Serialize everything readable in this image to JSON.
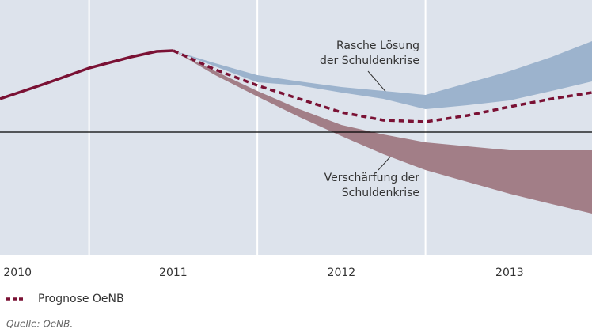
{
  "chart_data": {
    "type": "line",
    "xlim": [
      2009.97,
      2013.49
    ],
    "xticks": [
      2010,
      2011,
      2012,
      2013
    ],
    "xgrid": [
      2010.5,
      2011.5,
      2012.5
    ],
    "ylim": [
      -15.6,
      16.7
    ],
    "baseline": 0,
    "background": "#dde3ec",
    "series": [
      {
        "color": "#7a1134",
        "dashed": false,
        "x": [
          2009.97,
          2010.25,
          2010.5,
          2010.75,
          2010.9,
          2011
        ],
        "values": [
          4.2,
          6.2,
          8.1,
          9.5,
          10.2,
          10.3
        ]
      },
      {
        "name": "Prognose OeNB",
        "color": "#7a1134",
        "dashed": true,
        "x": [
          2011,
          2011.25,
          2011.5,
          2011.75,
          2012,
          2012.25,
          2012.5,
          2012.75,
          2013,
          2013.25,
          2013.49
        ],
        "values": [
          10.3,
          7.9,
          5.9,
          4.2,
          2.5,
          1.5,
          1.3,
          2.1,
          3.2,
          4.2,
          5.0
        ]
      }
    ],
    "bands": [
      {
        "color": "#9cb3cd",
        "x": [
          2011,
          2011.25,
          2011.5,
          2011.75,
          2012,
          2012.25,
          2012.5,
          2012.75,
          2013,
          2013.25,
          2013.49
        ],
        "upper": [
          10.3,
          8.7,
          7.2,
          6.4,
          5.7,
          5.2,
          4.7,
          6.2,
          7.7,
          9.5,
          11.5
        ],
        "lower": [
          10.3,
          8.3,
          6.3,
          5.9,
          5.0,
          4.2,
          2.9,
          3.4,
          4.0,
          5.2,
          6.4
        ]
      },
      {
        "color": "#a27e87",
        "x": [
          2011,
          2011.25,
          2011.5,
          2011.75,
          2012,
          2012.25,
          2012.5,
          2012.75,
          2013,
          2013.25,
          2013.49
        ],
        "upper": [
          10.3,
          7.7,
          5.2,
          2.9,
          0.9,
          -0.3,
          -1.3,
          -1.8,
          -2.3,
          -2.3,
          -2.3
        ],
        "lower": [
          10.3,
          7.2,
          4.5,
          1.9,
          -0.5,
          -2.8,
          -4.8,
          -6.3,
          -7.8,
          -9.1,
          -10.3
        ]
      }
    ],
    "annotations": [
      {
        "lines": [
          "Rasche Lösung",
          "der Schuldenkrise"
        ]
      },
      {
        "lines": [
          "Verschärfung der",
          "Schuldenkrise"
        ]
      }
    ],
    "source": "Quelle: OeNB."
  }
}
